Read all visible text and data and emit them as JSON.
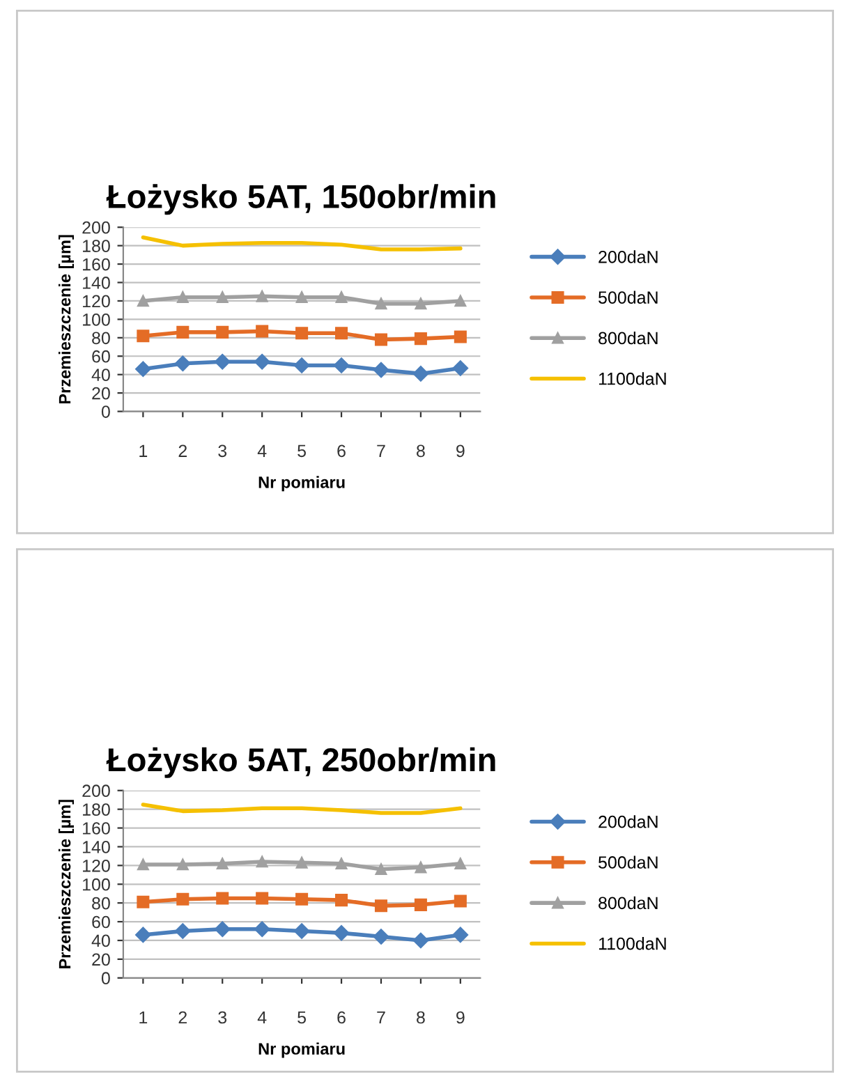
{
  "chart_data": [
    {
      "type": "line",
      "title": "Łożysko 5AT, 150obr/min",
      "xlabel": "Nr pomiaru",
      "ylabel": "Przemieszczenie [µm]",
      "categories": [
        "1",
        "2",
        "3",
        "4",
        "5",
        "6",
        "7",
        "8",
        "9"
      ],
      "ylim": [
        0,
        200
      ],
      "yticks": [
        0,
        20,
        40,
        60,
        80,
        100,
        120,
        140,
        160,
        180,
        200
      ],
      "grid": "y",
      "legend": "right",
      "series": [
        {
          "name": "200daN",
          "color": "#4a7ebb",
          "marker": "diamond",
          "values": [
            46,
            52,
            54,
            54,
            50,
            50,
            45,
            41,
            47
          ]
        },
        {
          "name": "500daN",
          "color": "#e46c26",
          "marker": "square",
          "values": [
            82,
            86,
            86,
            87,
            85,
            85,
            78,
            79,
            81
          ]
        },
        {
          "name": "800daN",
          "color": "#a0a0a0",
          "marker": "triangle",
          "values": [
            120,
            124,
            124,
            125,
            124,
            124,
            117,
            117,
            120
          ]
        },
        {
          "name": "1100daN",
          "color": "#f5c000",
          "marker": "none",
          "values": [
            189,
            180,
            182,
            183,
            183,
            181,
            176,
            176,
            177
          ]
        }
      ]
    },
    {
      "type": "line",
      "title": "Łożysko 5AT, 250obr/min",
      "xlabel": "Nr pomiaru",
      "ylabel": "Przemieszczenie [µm]",
      "categories": [
        "1",
        "2",
        "3",
        "4",
        "5",
        "6",
        "7",
        "8",
        "9"
      ],
      "ylim": [
        0,
        200
      ],
      "yticks": [
        0,
        20,
        40,
        60,
        80,
        100,
        120,
        140,
        160,
        180,
        200
      ],
      "grid": "y",
      "legend": "right",
      "series": [
        {
          "name": "200daN",
          "color": "#4a7ebb",
          "marker": "diamond",
          "values": [
            46,
            50,
            52,
            52,
            50,
            48,
            44,
            40,
            46
          ]
        },
        {
          "name": "500daN",
          "color": "#e46c26",
          "marker": "square",
          "values": [
            81,
            84,
            85,
            85,
            84,
            83,
            77,
            78,
            82
          ]
        },
        {
          "name": "800daN",
          "color": "#a0a0a0",
          "marker": "triangle",
          "values": [
            121,
            121,
            122,
            124,
            123,
            122,
            116,
            118,
            122
          ]
        },
        {
          "name": "1100daN",
          "color": "#f5c000",
          "marker": "none",
          "values": [
            185,
            178,
            179,
            181,
            181,
            179,
            176,
            176,
            181
          ]
        }
      ]
    }
  ]
}
